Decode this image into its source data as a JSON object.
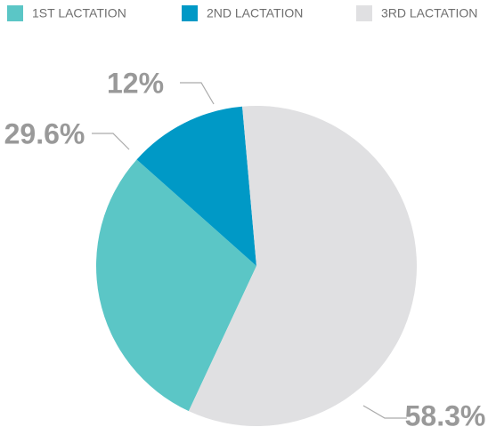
{
  "chart_data": {
    "type": "pie",
    "categories": [
      "1ST LACTATION",
      "2ND LACTATION",
      "3RD LACTATION"
    ],
    "values": [
      29.6,
      12,
      58.3
    ],
    "value_labels": [
      "29.6%",
      "12%",
      "58.3%"
    ],
    "colors": [
      "#5bc6c6",
      "#0099c6",
      "#e0e0e2"
    ],
    "legend": "top"
  }
}
